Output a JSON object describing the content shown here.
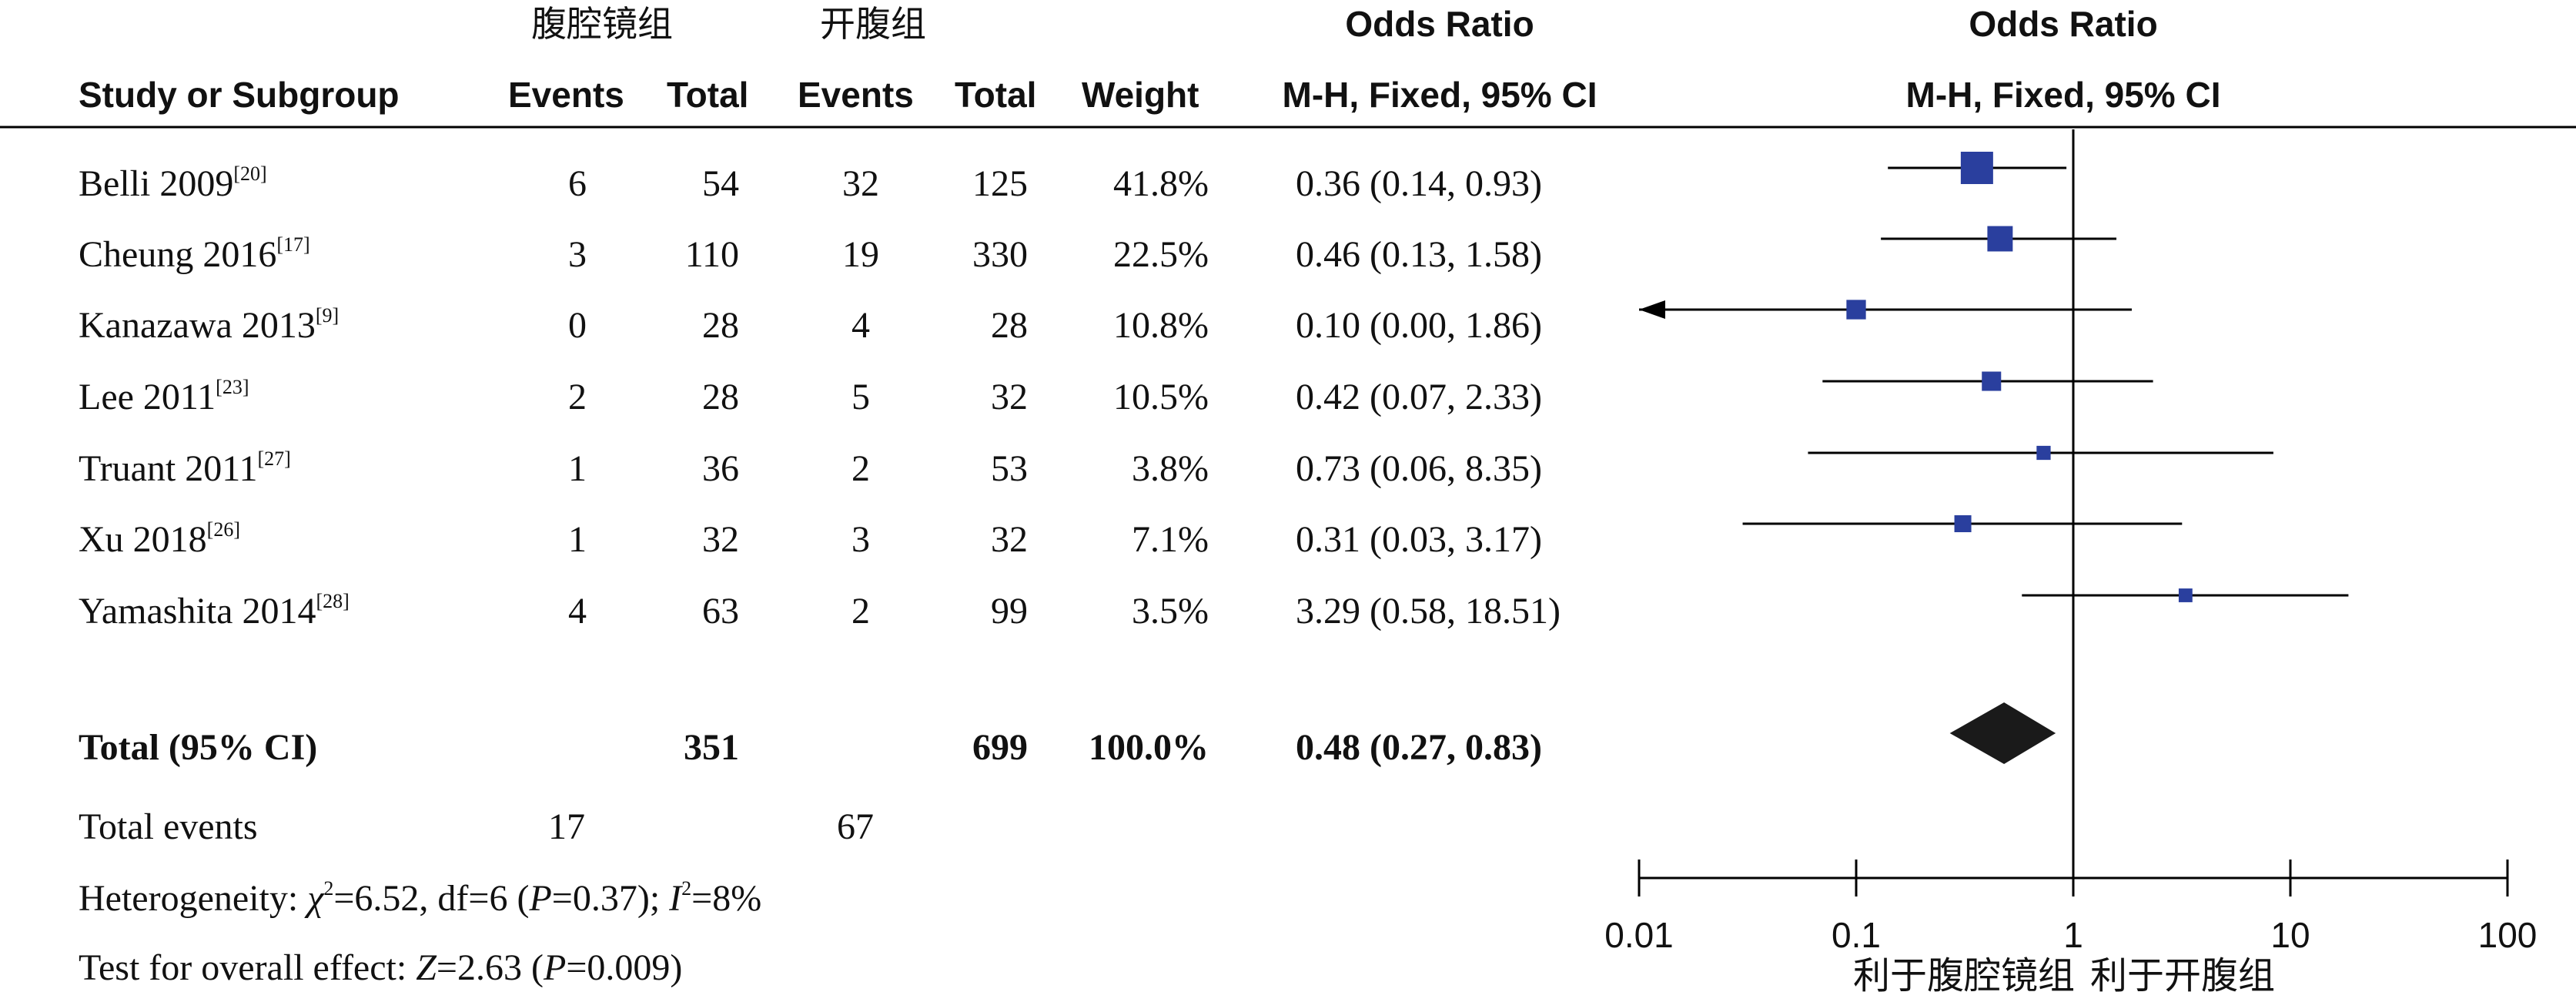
{
  "headers": {
    "group_lap": "腹腔镜组",
    "group_open": "开腹组",
    "odds_ratio_left": "Odds Ratio",
    "odds_ratio_right": "Odds Ratio",
    "study": "Study or Subgroup",
    "events1": "Events",
    "total1": "Total",
    "events2": "Events",
    "total2": "Total",
    "weight": "Weight",
    "method_left": "M-H, Fixed, 95% CI",
    "method_right": "M-H, Fixed, 95% CI"
  },
  "studies": [
    {
      "name": "Belli 2009",
      "ref": "[20]",
      "e1": "6",
      "t1": "54",
      "e2": "32",
      "t2": "125",
      "weight": "41.8%",
      "ci_text": "0.36 (0.14, 0.93)"
    },
    {
      "name": "Cheung 2016",
      "ref": "[17]",
      "e1": "3",
      "t1": "110",
      "e2": "19",
      "t2": "330",
      "weight": "22.5%",
      "ci_text": "0.46 (0.13, 1.58)"
    },
    {
      "name": "Kanazawa 2013",
      "ref": "[9]",
      "e1": "0",
      "t1": "28",
      "e2": "4",
      "t2": "28",
      "weight": "10.8%",
      "ci_text": "0.10 (0.00, 1.86)"
    },
    {
      "name": "Lee 2011",
      "ref": "[23]",
      "e1": "2",
      "t1": "28",
      "e2": "5",
      "t2": "32",
      "weight": "10.5%",
      "ci_text": "0.42 (0.07, 2.33)"
    },
    {
      "name": "Truant 2011",
      "ref": "[27]",
      "e1": "1",
      "t1": "36",
      "e2": "2",
      "t2": "53",
      "weight": "3.8%",
      "ci_text": "0.73 (0.06, 8.35)"
    },
    {
      "name": "Xu 2018",
      "ref": "[26]",
      "e1": "1",
      "t1": "32",
      "e2": "3",
      "t2": "32",
      "weight": "7.1%",
      "ci_text": "0.31 (0.03, 3.17)"
    },
    {
      "name": "Yamashita 2014",
      "ref": "[28]",
      "e1": "4",
      "t1": "63",
      "e2": "2",
      "t2": "99",
      "weight": "3.5%",
      "ci_text": "3.29 (0.58, 18.51)"
    }
  ],
  "total": {
    "label": "Total (95% CI)",
    "t1": "351",
    "t2": "699",
    "weight": "100.0%",
    "ci_text": "0.48 (0.27, 0.83)"
  },
  "total_events": {
    "label": "Total events",
    "e1": "17",
    "e2": "67"
  },
  "heterogeneity": {
    "prefix": "Heterogeneity: ",
    "chi_symbol": "χ",
    "chi_rest": "=6.52, df=6 (",
    "p_symbol": "P",
    "p_rest": "=0.37); ",
    "i_symbol": "I",
    "i_rest": "=8%"
  },
  "overall": {
    "prefix": "Test for overall effect: ",
    "z_symbol": "Z",
    "z_rest": "=2.63 (",
    "p_symbol": "P",
    "p_rest": "=0.009)"
  },
  "axis": {
    "favours_left": "利于腹腔镜组",
    "favours_right": "利于开腹组"
  },
  "colors": {
    "study_marker": "#2a3f9e",
    "diamond": "#1a1a1a"
  },
  "chart_data": {
    "type": "forest",
    "x_scale": "log",
    "xlim": [
      0.01,
      100
    ],
    "ticks": [
      0.01,
      0.1,
      1,
      10,
      100
    ],
    "tick_labels": [
      "0.01",
      "0.1",
      "1",
      "10",
      "100"
    ],
    "reference_line": 1,
    "studies": [
      {
        "name": "Belli 2009",
        "or": 0.36,
        "lo": 0.14,
        "hi": 0.93,
        "weight": 41.8
      },
      {
        "name": "Cheung 2016",
        "or": 0.46,
        "lo": 0.13,
        "hi": 1.58,
        "weight": 22.5
      },
      {
        "name": "Kanazawa 2013",
        "or": 0.1,
        "lo": 0.0,
        "hi": 1.86,
        "weight": 10.8
      },
      {
        "name": "Lee 2011",
        "or": 0.42,
        "lo": 0.07,
        "hi": 2.33,
        "weight": 10.5
      },
      {
        "name": "Truant 2011",
        "or": 0.73,
        "lo": 0.06,
        "hi": 8.35,
        "weight": 3.8
      },
      {
        "name": "Xu 2018",
        "or": 0.31,
        "lo": 0.03,
        "hi": 3.17,
        "weight": 7.1
      },
      {
        "name": "Yamashita 2014",
        "or": 3.29,
        "lo": 0.58,
        "hi": 18.51,
        "weight": 3.5
      }
    ],
    "pooled": {
      "or": 0.48,
      "lo": 0.27,
      "hi": 0.83
    }
  }
}
